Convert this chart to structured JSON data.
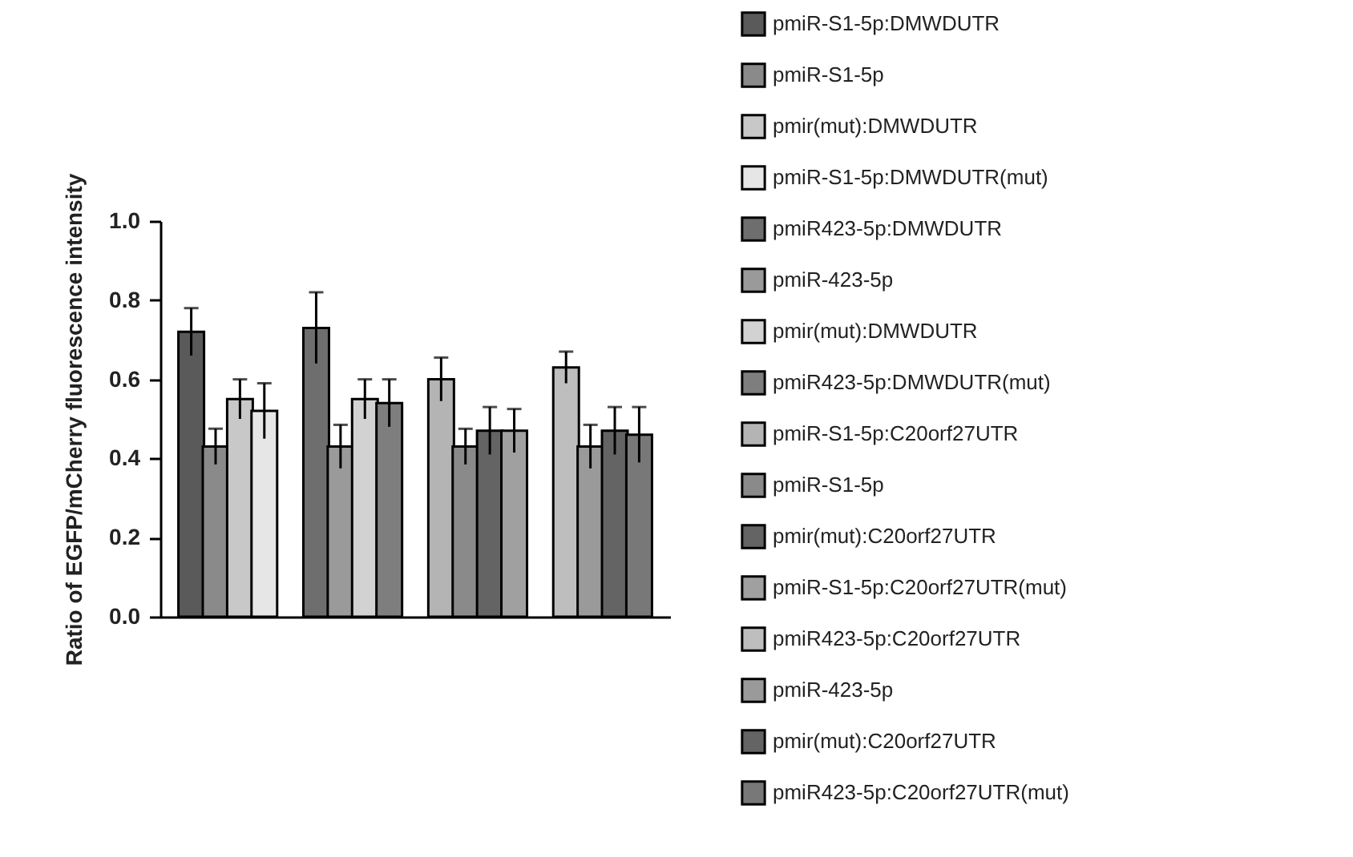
{
  "chart_data": {
    "type": "bar",
    "ylabel": "Ratio of EGFP/mCherry fluorescence intensity",
    "categories": [
      null,
      null,
      null,
      null
    ],
    "series": [
      {
        "name": "pmiR-S1-5p:DMWDUTR",
        "color": "#5a5a5a",
        "values": [
          0.72,
          null,
          null,
          null
        ],
        "errors": [
          0.06,
          null,
          null,
          null
        ]
      },
      {
        "name": "pmiR-S1-5p",
        "color": "#8a8a8a",
        "values": [
          0.43,
          null,
          null,
          null
        ],
        "errors": [
          0.045,
          null,
          null,
          null
        ]
      },
      {
        "name": "pmir(mut):DMWDUTR",
        "color": "#c8c8c8",
        "values": [
          0.55,
          null,
          null,
          null
        ],
        "errors": [
          0.05,
          null,
          null,
          null
        ]
      },
      {
        "name": "pmiR-S1-5p:DMWDUTR(mut)",
        "color": "#e6e6e6",
        "values": [
          0.52,
          null,
          null,
          null
        ],
        "errors": [
          0.07,
          null,
          null,
          null
        ]
      },
      {
        "name": "pmiR423-5p:DMWDUTR",
        "color": "#6e6e6e",
        "values": [
          null,
          0.73,
          null,
          null
        ],
        "errors": [
          null,
          0.09,
          null,
          null
        ]
      },
      {
        "name": "pmiR-423-5p",
        "color": "#9a9a9a",
        "values": [
          null,
          0.43,
          null,
          null
        ],
        "errors": [
          null,
          0.055,
          null,
          null
        ]
      },
      {
        "name": "pmir(mut):DMWDUTR",
        "color": "#d2d2d2",
        "values": [
          null,
          0.55,
          null,
          null
        ],
        "errors": [
          null,
          0.05,
          null,
          null
        ]
      },
      {
        "name": "pmiR423-5p:DMWDUTR(mut)",
        "color": "#7e7e7e",
        "values": [
          null,
          0.54,
          null,
          null
        ],
        "errors": [
          null,
          0.06,
          null,
          null
        ]
      },
      {
        "name": "pmiR-S1-5p:C20orf27UTR",
        "color": "#b4b4b4",
        "values": [
          null,
          null,
          0.6,
          null
        ],
        "errors": [
          null,
          null,
          0.055,
          null
        ]
      },
      {
        "name": "pmiR-S1-5p",
        "color": "#8a8a8a",
        "values": [
          null,
          null,
          0.43,
          null
        ],
        "errors": [
          null,
          null,
          0.045,
          null
        ]
      },
      {
        "name": "pmir(mut):C20orf27UTR",
        "color": "#646464",
        "values": [
          null,
          null,
          0.47,
          null
        ],
        "errors": [
          null,
          null,
          0.06,
          null
        ]
      },
      {
        "name": "pmiR-S1-5p:C20orf27UTR(mut)",
        "color": "#a0a0a0",
        "values": [
          null,
          null,
          0.47,
          null
        ],
        "errors": [
          null,
          null,
          0.055,
          null
        ]
      },
      {
        "name": "pmiR423-5p:C20orf27UTR",
        "color": "#bebebe",
        "values": [
          null,
          null,
          null,
          0.63
        ],
        "errors": [
          null,
          null,
          null,
          0.04
        ]
      },
      {
        "name": "pmiR-423-5p",
        "color": "#9a9a9a",
        "values": [
          null,
          null,
          null,
          0.43
        ],
        "errors": [
          null,
          null,
          null,
          0.055
        ]
      },
      {
        "name": "pmir(mut):C20orf27UTR",
        "color": "#646464",
        "values": [
          null,
          null,
          null,
          0.47
        ],
        "errors": [
          null,
          null,
          null,
          0.06
        ]
      },
      {
        "name": "pmiR423-5p:C20orf27UTR(mut)",
        "color": "#787878",
        "values": [
          null,
          null,
          null,
          0.46
        ],
        "errors": [
          null,
          null,
          null,
          0.07
        ]
      }
    ],
    "ylim": [
      0,
      1.0
    ],
    "yticks": [
      {
        "value": 0,
        "label": "0.0"
      },
      {
        "value": 0.2,
        "label": "0.2"
      },
      {
        "value": 0.4,
        "label": "0.4"
      },
      {
        "value": 0.6,
        "label": "0.6"
      },
      {
        "value": 0.8,
        "label": "0.8"
      },
      {
        "value": 1.0,
        "label": "1.0"
      }
    ],
    "grid": false,
    "legend": "right"
  }
}
